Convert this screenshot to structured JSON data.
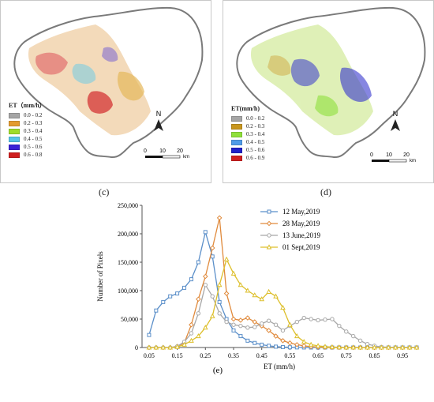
{
  "panel_c": {
    "caption": "(c)",
    "legend_title": "ET（mm/h）",
    "classes": [
      {
        "label": "0.0 - 0.2",
        "color": "#a5a5a5"
      },
      {
        "label": "0.2 - 0.3",
        "color": "#e39b2f"
      },
      {
        "label": "0.3 - 0.4",
        "color": "#9fdc2a"
      },
      {
        "label": "0.4 - 0.5",
        "color": "#56c5e8"
      },
      {
        "label": "0.5 - 0.6",
        "color": "#3a22d6"
      },
      {
        "label": "0.6 - 0.8",
        "color": "#d01f1f"
      }
    ],
    "north": "N",
    "scale_labels": [
      "0",
      "10",
      "20"
    ],
    "scale_unit": "km"
  },
  "panel_d": {
    "caption": "(d)",
    "legend_title": "ET(mm/h)",
    "classes": [
      {
        "label": "0.0 - 0.2",
        "color": "#a5a5a5"
      },
      {
        "label": "0.2 - 0.3",
        "color": "#c8961e"
      },
      {
        "label": "0.3 - 0.4",
        "color": "#8fe03a"
      },
      {
        "label": "0.4 - 0.5",
        "color": "#4f9be8"
      },
      {
        "label": "0.5 - 0.6",
        "color": "#2020c8"
      },
      {
        "label": "0.6 - 0.9",
        "color": "#d01f1f"
      }
    ],
    "north": "N",
    "scale_labels": [
      "0",
      "10",
      "20"
    ],
    "scale_unit": "km"
  },
  "chart_data": {
    "type": "line",
    "caption": "(e)",
    "xlabel": "ET (mm/h)",
    "ylabel": "Number of Pixels",
    "x_ticks": [
      "0.05",
      "0.15",
      "0.25",
      "0.35",
      "0.45",
      "0.55",
      "0.65",
      "0.75",
      "0.85",
      "0.95"
    ],
    "y_ticks": [
      "0",
      "50,000",
      "100,000",
      "150,000",
      "200,000",
      "250,000"
    ],
    "xlim": [
      0.025,
      1.0
    ],
    "ylim": [
      0,
      250000
    ],
    "legend_position": "top-right",
    "x": [
      0.05,
      0.075,
      0.1,
      0.125,
      0.15,
      0.175,
      0.2,
      0.225,
      0.25,
      0.275,
      0.3,
      0.325,
      0.35,
      0.375,
      0.4,
      0.425,
      0.45,
      0.475,
      0.5,
      0.525,
      0.55,
      0.575,
      0.6,
      0.625,
      0.65,
      0.675,
      0.7,
      0.725,
      0.75,
      0.775,
      0.8,
      0.825,
      0.85,
      0.875,
      0.9,
      0.925,
      0.95,
      0.975,
      1.0
    ],
    "series": [
      {
        "name": "12 May,2019",
        "color": "#5b8fc9",
        "marker": "square",
        "values": [
          22000,
          65000,
          80000,
          90000,
          95000,
          105000,
          120000,
          150000,
          203000,
          160000,
          80000,
          50000,
          30000,
          20000,
          12000,
          8000,
          5000,
          3000,
          1500,
          800,
          400,
          200,
          100,
          0,
          0,
          0,
          0,
          0,
          0,
          0,
          0,
          0,
          0,
          0,
          0,
          0,
          0,
          0,
          0
        ]
      },
      {
        "name": "28 May,2019",
        "color": "#e08a3c",
        "marker": "diamond",
        "values": [
          0,
          0,
          0,
          0,
          2000,
          8000,
          40000,
          85000,
          125000,
          175000,
          228000,
          95000,
          50000,
          48000,
          52000,
          45000,
          38000,
          30000,
          20000,
          12000,
          8000,
          5000,
          3000,
          1500,
          800,
          400,
          200,
          100,
          0,
          0,
          0,
          0,
          0,
          0,
          0,
          0,
          0,
          0,
          0
        ]
      },
      {
        "name": "13 June,2019",
        "color": "#a8a8a8",
        "marker": "circle",
        "values": [
          0,
          0,
          0,
          0,
          2000,
          10000,
          25000,
          60000,
          110000,
          90000,
          60000,
          45000,
          40000,
          38000,
          35000,
          36000,
          42000,
          47000,
          40000,
          30000,
          38000,
          45000,
          52000,
          50000,
          48000,
          49000,
          50000,
          38000,
          28000,
          20000,
          12000,
          6000,
          3000,
          1000,
          500,
          200,
          0,
          0,
          0
        ]
      },
      {
        "name": "01 Sept,2019",
        "color": "#ddbf2b",
        "marker": "triangle",
        "values": [
          0,
          0,
          0,
          0,
          1000,
          5000,
          12000,
          20000,
          35000,
          55000,
          110000,
          155000,
          130000,
          110000,
          100000,
          92000,
          85000,
          98000,
          90000,
          70000,
          40000,
          20000,
          10000,
          5000,
          3000,
          1500,
          800,
          400,
          200,
          100,
          0,
          0,
          0,
          0,
          0,
          0,
          0,
          0,
          0
        ]
      }
    ]
  }
}
